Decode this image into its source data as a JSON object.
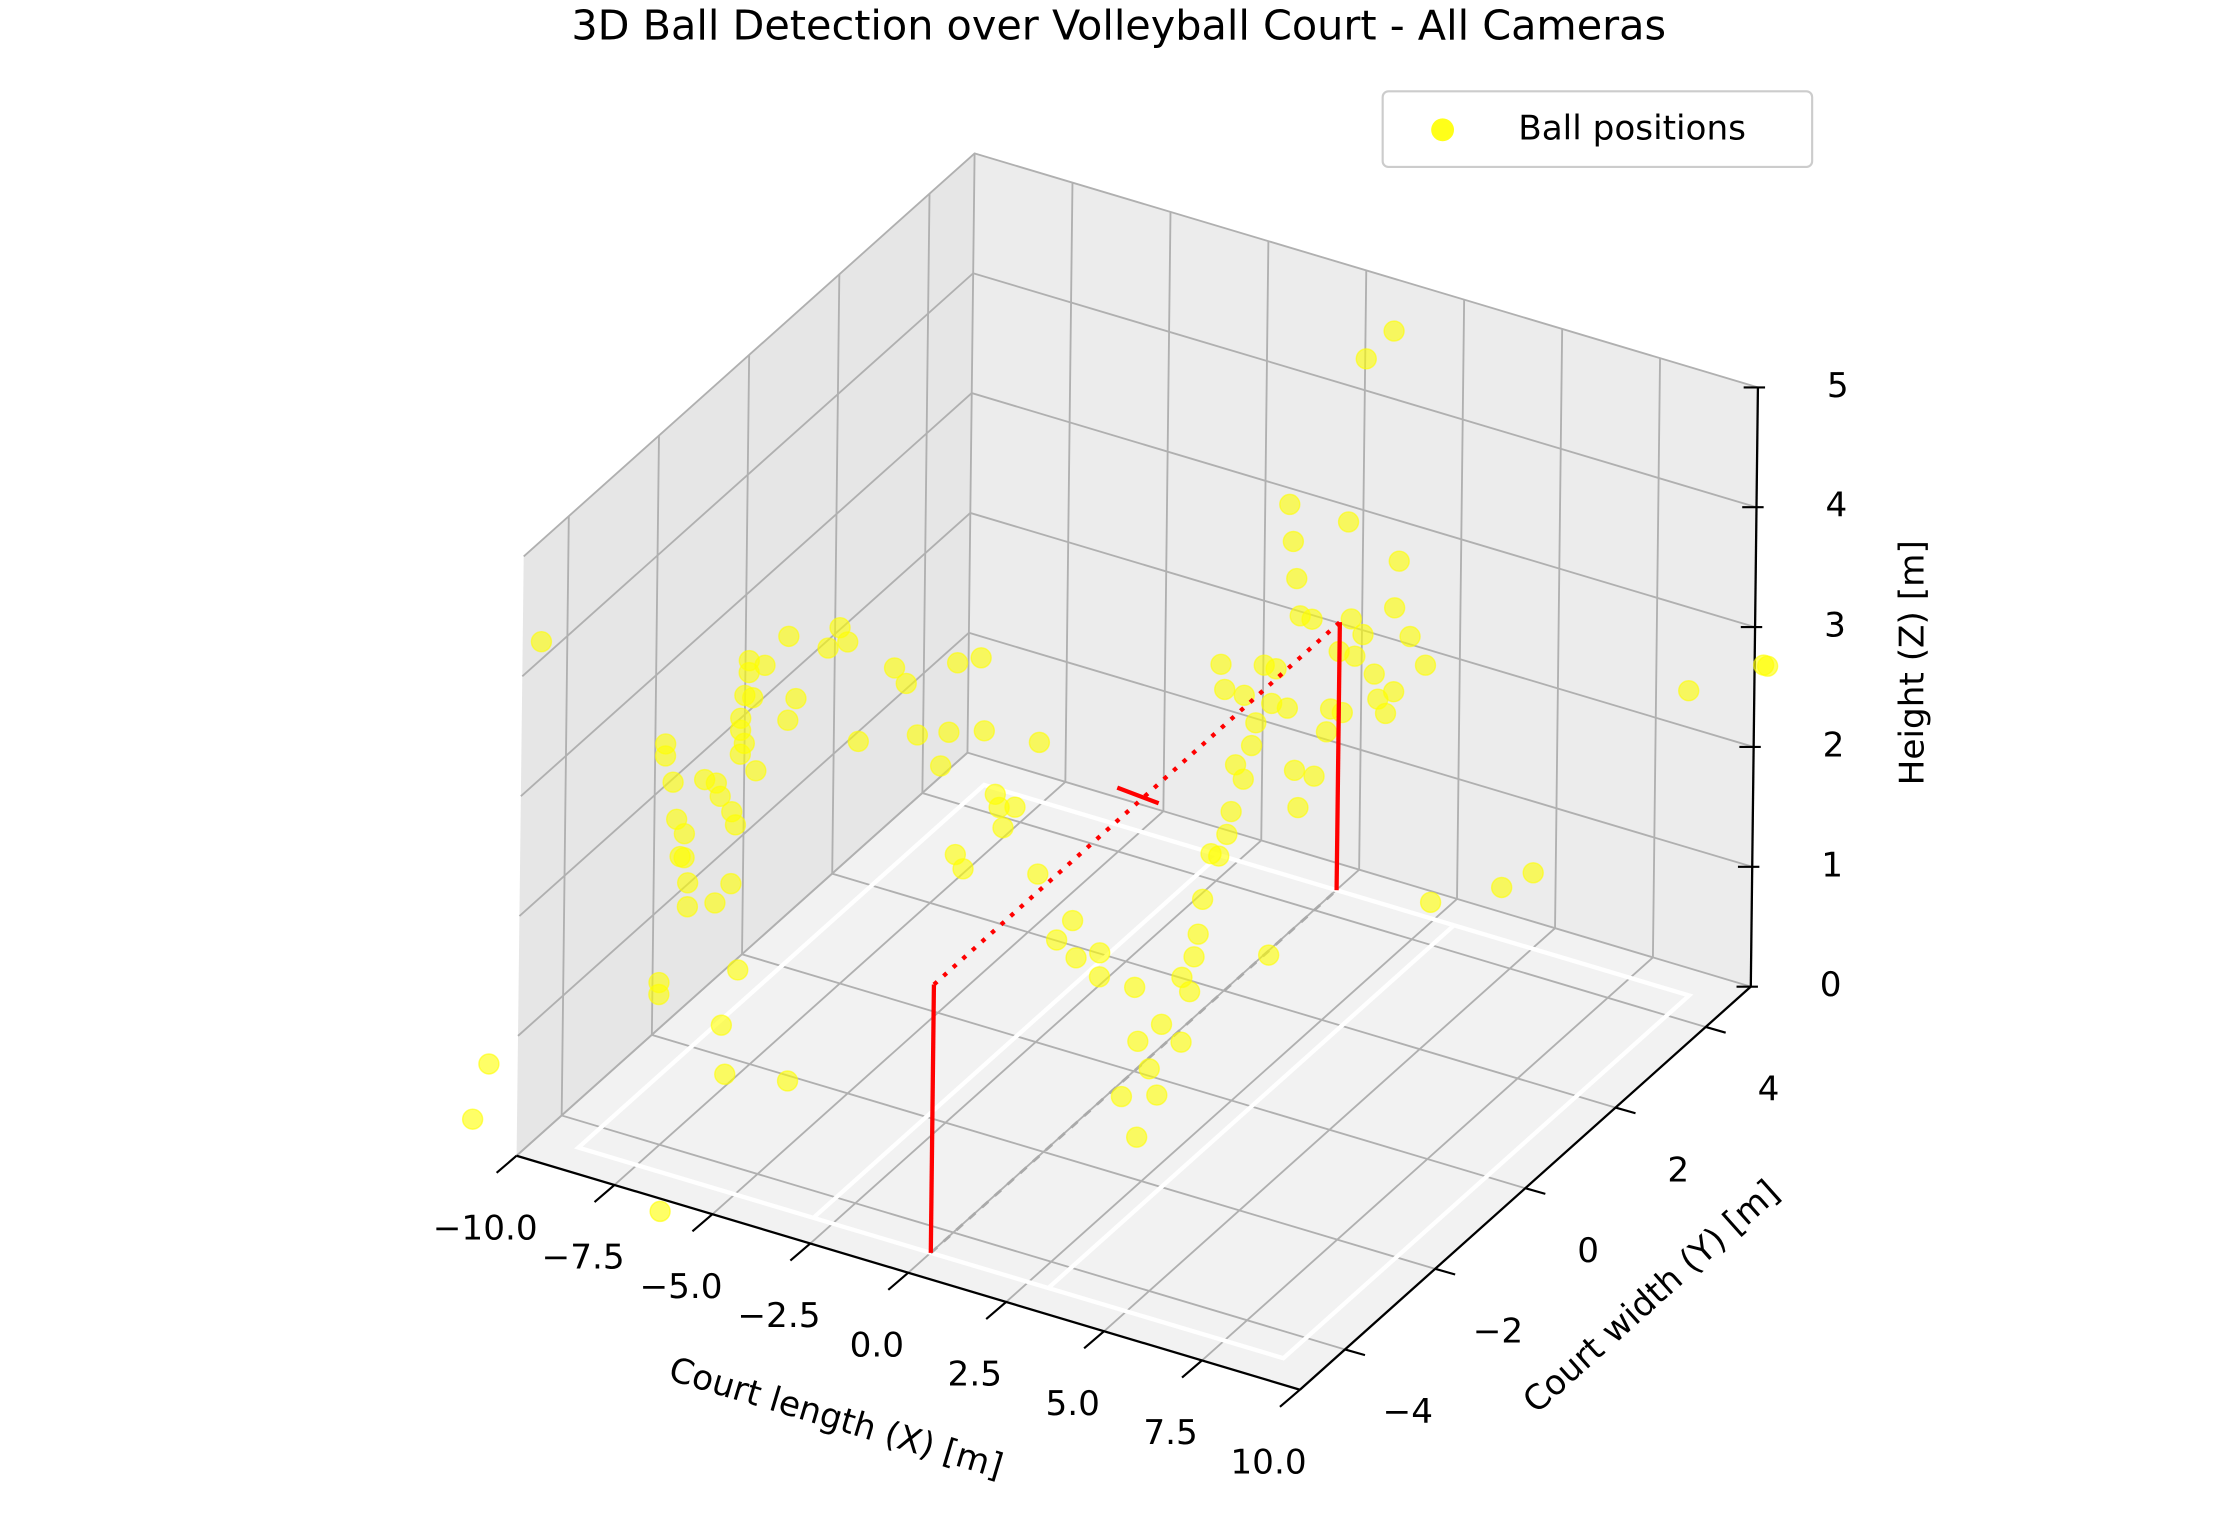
{
  "chart_data": {
    "type": "scatter3d",
    "title": "3D Ball Detection over Volleyball Court - All Cameras",
    "xlabel": "Court length (X) [m]",
    "ylabel": "Court width (Y) [m]",
    "zlabel": "Height (Z) [m]",
    "xlim": [
      -10,
      10
    ],
    "ylim": [
      -5,
      5
    ],
    "zlim": [
      0,
      5
    ],
    "xticks": [
      {
        "value": -10,
        "label": "−10.0"
      },
      {
        "value": -7.5,
        "label": "−7.5"
      },
      {
        "value": -5,
        "label": "−5.0"
      },
      {
        "value": -2.5,
        "label": "−2.5"
      },
      {
        "value": 0,
        "label": "0.0"
      },
      {
        "value": 2.5,
        "label": "2.5"
      },
      {
        "value": 5,
        "label": "5.0"
      },
      {
        "value": 7.5,
        "label": "7.5"
      },
      {
        "value": 10,
        "label": "10.0"
      }
    ],
    "yticks": [
      {
        "value": -4,
        "label": "−4"
      },
      {
        "value": -2,
        "label": "−2"
      },
      0,
      2,
      4
    ],
    "zticks": [
      0,
      1,
      2,
      3,
      4,
      5
    ],
    "grid": true,
    "legend": "upper right",
    "series": [
      {
        "name": "Ball positions",
        "color": "#ffff00",
        "x": [
          -13.0,
          -13.4,
          -8.6,
          -8.7,
          -8.7,
          -8.6,
          -8.6,
          -8.4,
          -8.3,
          -8.1,
          -8.2,
          -8.1,
          -8.0,
          -8.0,
          -7.6,
          -7.3,
          -7.2,
          -6.9,
          -6.8,
          -6.7,
          -6.7,
          -6.6,
          -6.7,
          -6.5,
          -6.5,
          -6.6,
          -6.4,
          -6.3,
          -6.1,
          -6.9,
          -7.3,
          -6.7,
          -7.1,
          -7.0,
          -5.5,
          -5.4,
          -5.5,
          -5.3,
          -4.5,
          -4.2,
          -4.0,
          -3.7,
          -2.8,
          -2.5,
          -2.2,
          -1.4,
          -1.6,
          -1.2,
          -0.6,
          -0.5,
          -0.2,
          -0.1,
          -1.2,
          -1.0,
          3.5,
          4.1,
          4.6,
          3.8,
          4.0,
          3.1,
          3.5,
          -15.2,
          -3.1,
          -3.4,
          -2.5,
          -2.5,
          -1.6,
          -2.0,
          -0.9,
          -1.5,
          -0.9,
          0.0,
          1.2,
          1.4,
          1.5,
          1.6,
          1.7,
          1.9,
          2.1,
          2.3,
          2.4,
          2.7,
          2.5,
          2.9,
          3.0,
          2.1,
          2.2,
          2.7,
          3.2,
          3.4,
          3.5,
          3.8,
          3.9,
          4.0,
          4.1,
          4.4,
          3.8,
          4.0,
          4.1,
          4.5,
          4.8,
          4.9,
          5.2,
          5.4,
          5.7,
          5.5,
          5.1,
          6.0,
          6.1,
          6.3,
          6.5,
          6.9,
          6.6,
          6.5,
          7.3,
          5.3,
          5.7,
          6.4,
          3.4,
          4.1,
          5.9,
          6.7,
          10.6,
          12.5,
          12.6
        ],
        "y": [
          -3,
          -3,
          -3,
          -3,
          -3,
          -3,
          -3,
          -3,
          -3,
          -3,
          -3,
          -3,
          -3,
          -3,
          -3,
          -3,
          -3,
          -3,
          -3,
          -3,
          -3,
          -3,
          -3,
          -3,
          -3,
          -3,
          -3,
          -3,
          -3,
          -3,
          -3,
          -3,
          -3,
          -3,
          -3,
          -3,
          -3,
          -3,
          -3,
          -3,
          -3,
          -3,
          -3,
          -3,
          -3,
          -3,
          -3,
          -3,
          -3,
          -3,
          -3,
          -3,
          -3,
          -3,
          -3,
          -3,
          -3,
          -3,
          -3,
          -3,
          -3,
          0,
          0,
          0,
          0,
          0,
          0,
          0,
          0,
          0,
          0,
          0,
          0,
          0,
          0,
          0,
          0,
          0,
          0,
          0,
          0,
          0,
          0,
          0,
          0,
          0,
          0,
          0,
          0,
          0,
          0,
          0,
          0,
          0,
          0,
          0,
          0,
          0,
          0,
          0,
          0,
          0,
          0,
          0,
          0,
          0,
          0,
          0,
          0,
          0,
          0,
          0,
          0,
          0,
          0,
          0,
          0,
          0,
          0,
          3,
          3,
          3,
          3,
          3,
          3
        ],
        "z": [
          -0.2,
          -0.7,
          -1.0,
          0.9,
          0.8,
          2.9,
          2.8,
          2.6,
          2.3,
          2.2,
          2.0,
          2.0,
          1.8,
          1.6,
          2.7,
          2.7,
          2.6,
          2.5,
          2.4,
          3.3,
          3.2,
          3.1,
          3.0,
          3.8,
          3.7,
          3.5,
          3.5,
          2.9,
          3.8,
          1.9,
          1.7,
          1.2,
          0.7,
          0.3,
          4.1,
          0.4,
          3.4,
          3.6,
          4.1,
          4.3,
          4.2,
          3.4,
          4.1,
          4.0,
          3.6,
          3.7,
          3.4,
          4.3,
          4.4,
          3.8,
          3.3,
          3.2,
          2.7,
          2.6,
          1.6,
          1.8,
          1.7,
          1.4,
          1.2,
          1.1,
          0.8,
          2.1,
          1.9,
          1.7,
          2.5,
          1.4,
          1.1,
          0.9,
          0.9,
          0.8,
          0.7,
          0.7,
          0.9,
          0.8,
          1.1,
          1.3,
          1.6,
          2.0,
          2.0,
          2.2,
          2.4,
          2.7,
          2.8,
          3.0,
          3.2,
          3.6,
          3.4,
          3.4,
          3.7,
          3.4,
          3.7,
          5.1,
          4.8,
          4.5,
          4.2,
          4.2,
          3.4,
          2.9,
          2.6,
          2.9,
          3.3,
          3.5,
          3.5,
          4.3,
          4.2,
          4.0,
          4.0,
          3.9,
          3.7,
          3.6,
          3.8,
          4.3,
          4.9,
          4.5,
          4.1,
          5.1,
          6.5,
          6.8,
          1.3,
          0.8,
          1.1,
          1.3,
          3.2,
          3.6,
          3.6
        ]
      }
    ]
  }
}
